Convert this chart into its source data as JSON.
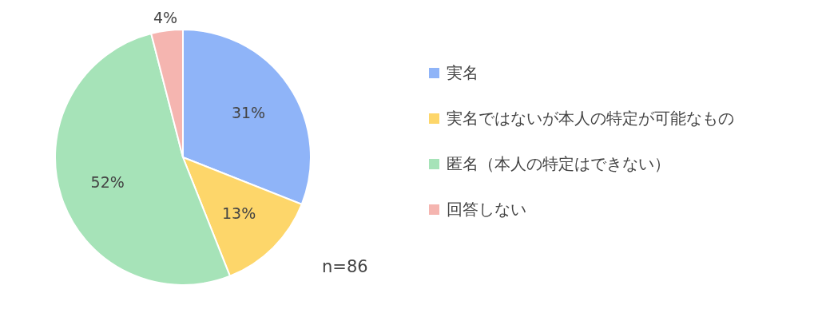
{
  "chart_data": {
    "type": "pie",
    "categories": [
      "実名",
      "実名ではないが本人の特定が可能なもの",
      "匿名（本人の特定はできない）",
      "回答しない"
    ],
    "values": [
      31,
      13,
      52,
      4
    ],
    "colors": [
      "#8fb4f8",
      "#fdd66a",
      "#a6e3b8",
      "#f5b5b0"
    ],
    "value_labels": [
      "31%",
      "13%",
      "52%",
      "4%"
    ],
    "legend": "right",
    "annotations": [
      "n=86"
    ]
  }
}
